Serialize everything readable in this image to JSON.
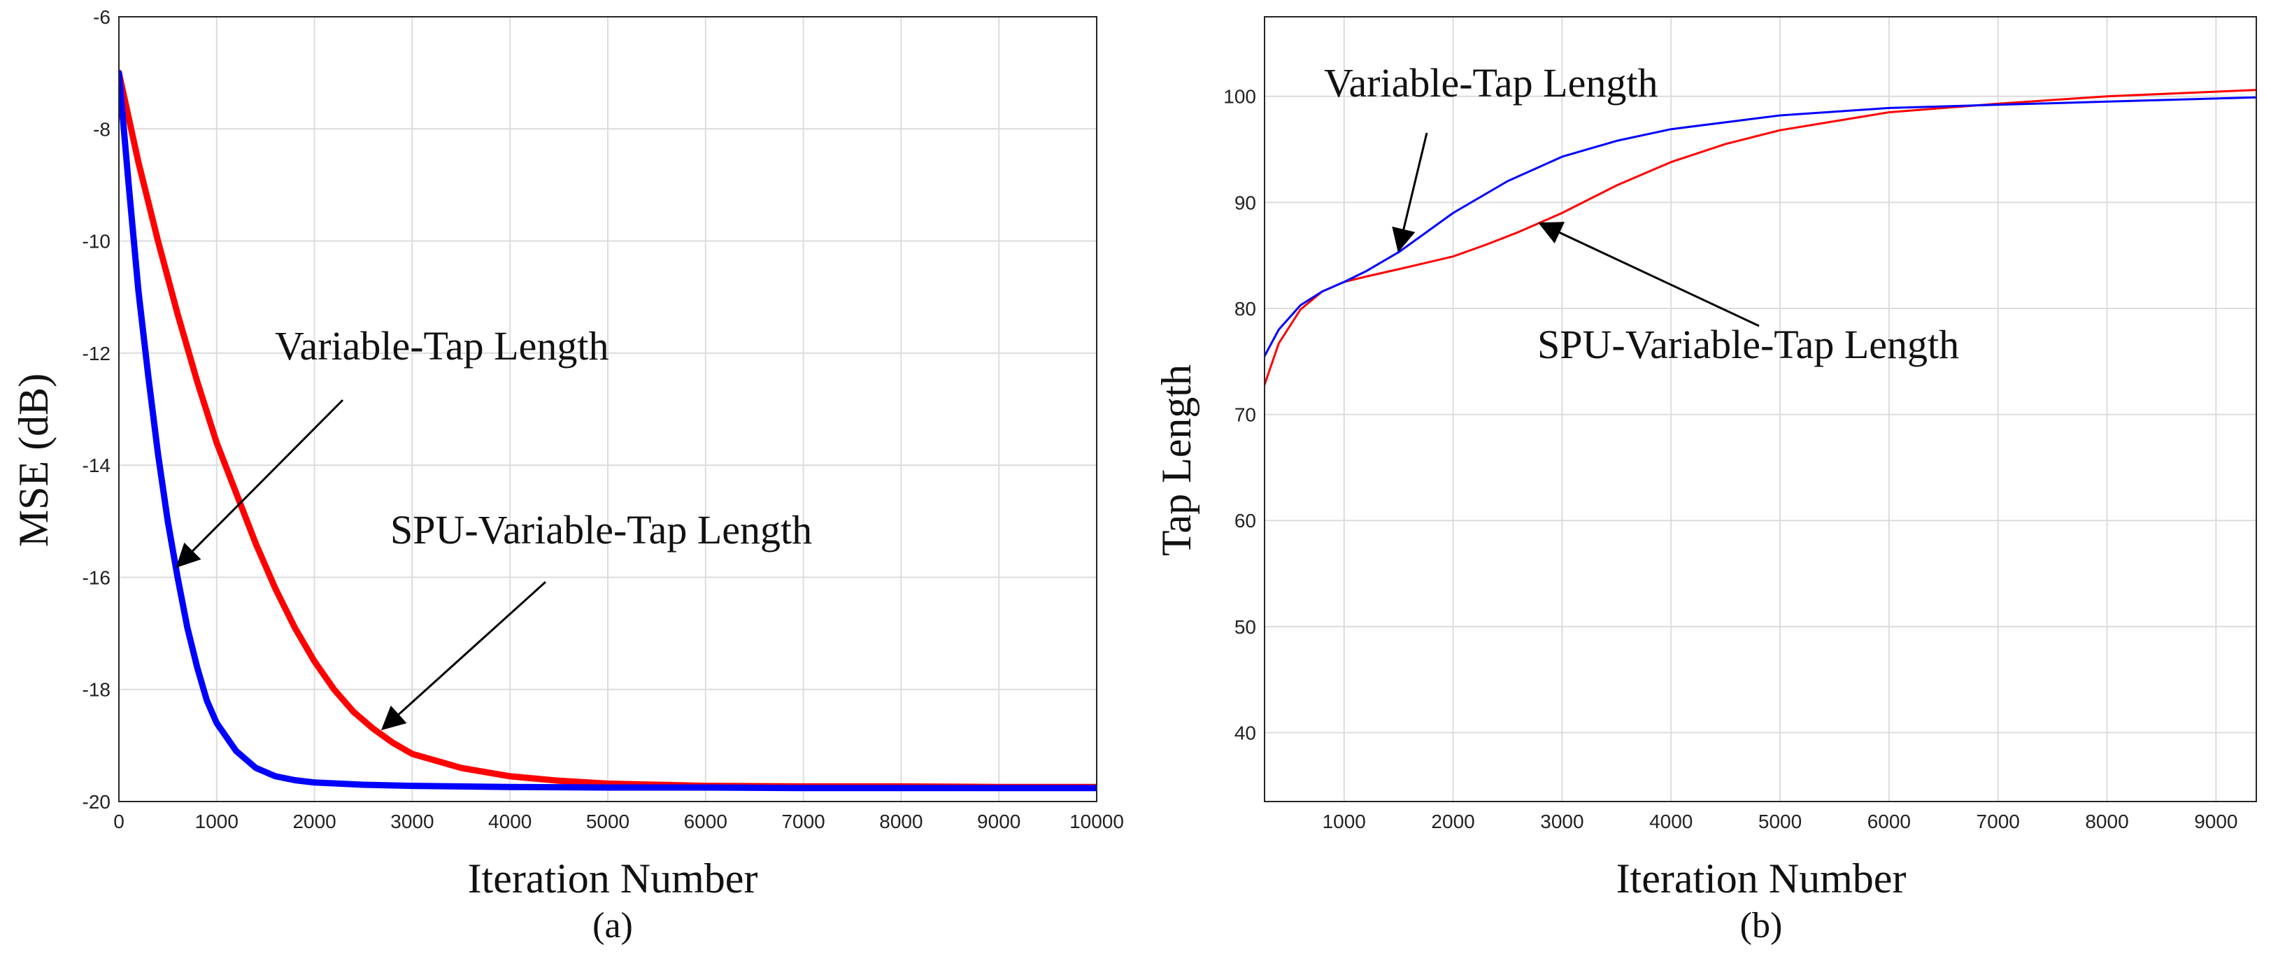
{
  "chart_data": [
    {
      "type": "line",
      "panel": "a",
      "panel_label": "(a)",
      "title": "",
      "xlabel": "Iteration Number",
      "ylabel": "MSE (dB)",
      "xlim": [
        0,
        10000
      ],
      "ylim": [
        -20,
        -6
      ],
      "xticks": [
        0,
        1000,
        2000,
        3000,
        4000,
        5000,
        6000,
        7000,
        8000,
        9000,
        10000
      ],
      "yticks": [
        -20,
        -18,
        -16,
        -14,
        -12,
        -10,
        -8,
        -6
      ],
      "grid": true,
      "series": [
        {
          "name": "Variable-Tap Length",
          "color": "#0000ff",
          "x": [
            0,
            100,
            200,
            300,
            400,
            500,
            600,
            700,
            800,
            900,
            1000,
            1200,
            1400,
            1600,
            1800,
            2000,
            2500,
            3000,
            4000,
            5000,
            6000,
            7000,
            8000,
            9000,
            10000
          ],
          "y": [
            -7.0,
            -9.0,
            -10.9,
            -12.4,
            -13.8,
            -15.0,
            -16.0,
            -16.9,
            -17.6,
            -18.2,
            -18.6,
            -19.1,
            -19.4,
            -19.55,
            -19.62,
            -19.66,
            -19.7,
            -19.72,
            -19.74,
            -19.75,
            -19.75,
            -19.76,
            -19.76,
            -19.76,
            -19.76
          ]
        },
        {
          "name": "SPU-Variable-Tap Length",
          "color": "#ff0000",
          "x": [
            0,
            200,
            400,
            600,
            800,
            1000,
            1200,
            1400,
            1600,
            1800,
            2000,
            2200,
            2400,
            2600,
            2800,
            3000,
            3500,
            4000,
            4500,
            5000,
            5500,
            6000,
            7000,
            8000,
            9000,
            10000
          ],
          "y": [
            -7.0,
            -8.6,
            -10.0,
            -11.3,
            -12.5,
            -13.6,
            -14.5,
            -15.4,
            -16.2,
            -16.9,
            -17.5,
            -18.0,
            -18.4,
            -18.7,
            -18.95,
            -19.15,
            -19.4,
            -19.55,
            -19.63,
            -19.68,
            -19.7,
            -19.72,
            -19.73,
            -19.73,
            -19.74,
            -19.74
          ]
        }
      ],
      "annotations": [
        {
          "text": "Variable-Tap Length",
          "target_series": "Variable-Tap Length",
          "target": [
            600,
            -15.8
          ]
        },
        {
          "text": "SPU-Variable-Tap Length",
          "target_series": "SPU-Variable-Tap Length",
          "target": [
            2700,
            -18.7
          ]
        }
      ]
    },
    {
      "type": "line",
      "panel": "b",
      "panel_label": "(b)",
      "title": "",
      "xlabel": "Iteration Number",
      "ylabel": "Tap Length",
      "xlim": [
        270,
        9370
      ],
      "ylim": [
        33.5,
        107.5
      ],
      "xticks": [
        1000,
        2000,
        3000,
        4000,
        5000,
        6000,
        7000,
        8000,
        9000
      ],
      "yticks": [
        40,
        50,
        60,
        70,
        80,
        90,
        100
      ],
      "grid": true,
      "series": [
        {
          "name": "Variable-Tap Length",
          "color": "#0000ff",
          "x": [
            270,
            400,
            600,
            800,
            1000,
            1200,
            1500,
            2000,
            2500,
            3000,
            3500,
            4000,
            5000,
            6000,
            7000,
            8000,
            9370
          ],
          "y": [
            75.5,
            78.0,
            80.3,
            81.6,
            82.5,
            83.5,
            85.3,
            89.0,
            92.0,
            94.3,
            95.8,
            96.9,
            98.2,
            98.9,
            99.2,
            99.5,
            99.9
          ]
        },
        {
          "name": "SPU-Variable-Tap Length",
          "color": "#ff0000",
          "x": [
            270,
            400,
            600,
            800,
            1000,
            1200,
            1500,
            2000,
            2300,
            2600,
            3000,
            3500,
            4000,
            4500,
            5000,
            6000,
            7000,
            8000,
            9370
          ],
          "y": [
            72.8,
            76.7,
            79.9,
            81.6,
            82.5,
            83.0,
            83.7,
            84.9,
            86.0,
            87.2,
            89.0,
            91.6,
            93.8,
            95.5,
            96.8,
            98.5,
            99.3,
            100.0,
            100.6
          ]
        }
      ],
      "annotations": [
        {
          "text": "Variable-Tap Length",
          "target_series": "Variable-Tap Length",
          "target": [
            1500,
            85.5
          ]
        },
        {
          "text": "SPU-Variable-Tap Length",
          "target_series": "SPU-Variable-Tap Length",
          "target": [
            2800,
            88.0
          ]
        }
      ]
    }
  ]
}
